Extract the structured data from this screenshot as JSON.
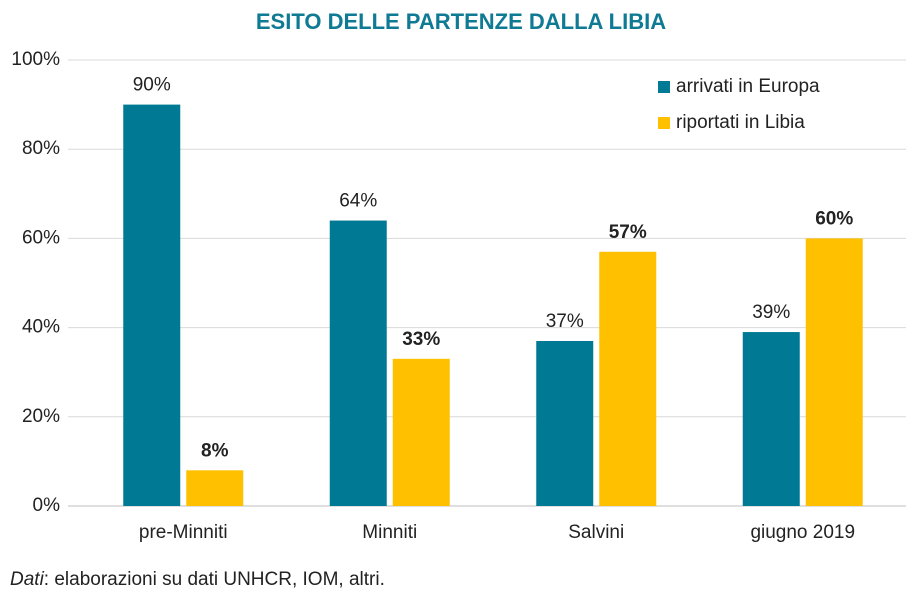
{
  "chart_data": {
    "type": "bar",
    "title": "ESITO DELLE PARTENZE DALLA LIBIA",
    "categories": [
      "pre-Minniti",
      "Minniti",
      "Salvini",
      "giugno 2019"
    ],
    "series": [
      {
        "name": "arrivati in Europa",
        "color": "#007a94",
        "values": [
          90,
          64,
          37,
          39
        ],
        "value_labels": [
          "90%",
          "64%",
          "37%",
          "39%"
        ]
      },
      {
        "name": "riportati in Libia",
        "color": "#ffc000",
        "values": [
          8,
          33,
          57,
          60
        ],
        "value_labels": [
          "8%",
          "33%",
          "57%",
          "60%"
        ]
      }
    ],
    "ylim": [
      0,
      100
    ],
    "yticks": [
      {
        "value": 0,
        "label": "0%"
      },
      {
        "value": 20,
        "label": "20%"
      },
      {
        "value": 40,
        "label": "40%"
      },
      {
        "value": 60,
        "label": "60%"
      },
      {
        "value": 80,
        "label": "80%"
      },
      {
        "value": 100,
        "label": "100%"
      }
    ],
    "grid": true,
    "legend": "top-right",
    "source_label": "Dati",
    "source_text": ": elaborazioni su dati UNHCR, IOM, altri."
  }
}
